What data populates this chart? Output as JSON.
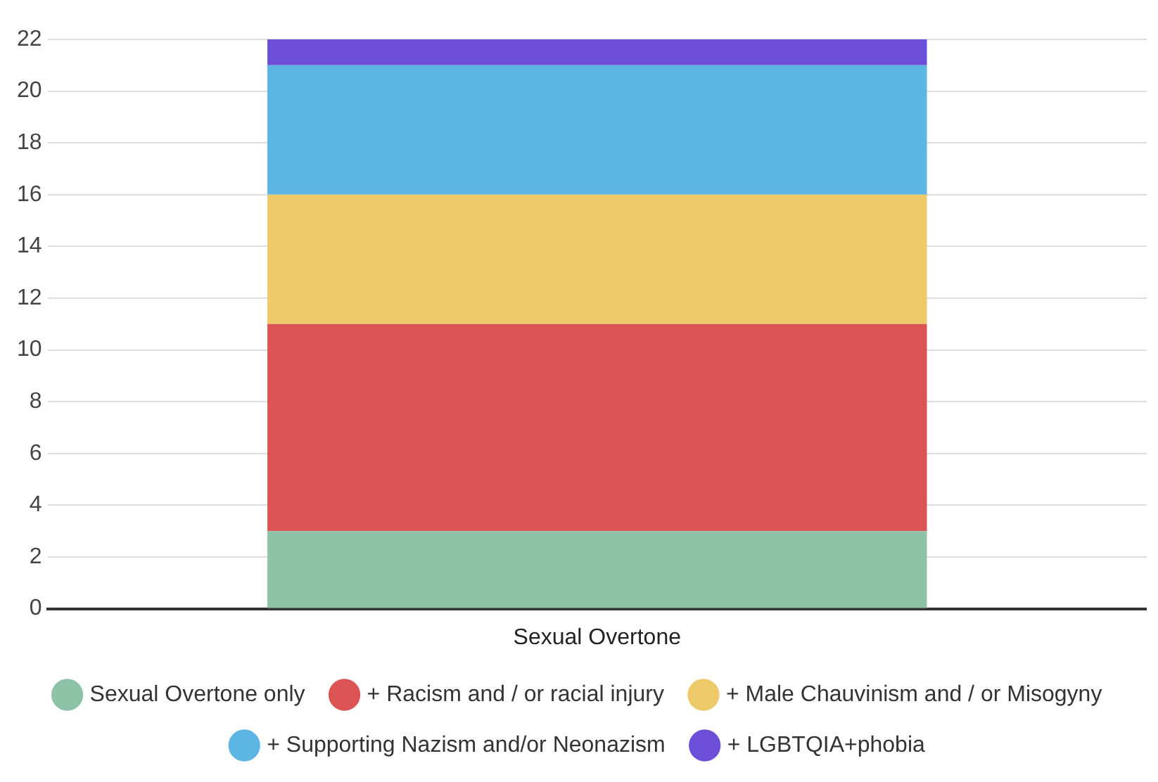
{
  "chart_data": {
    "type": "bar",
    "stacked": true,
    "categories": [
      "Sexual Overtone"
    ],
    "series": [
      {
        "name": "Sexual Overtone only",
        "color": "#8ec3a7",
        "values": [
          3
        ]
      },
      {
        "name": "+ Racism and / or racial injury",
        "color": "#db5353",
        "values": [
          8
        ]
      },
      {
        "name": "+ Male Chauvinism and / or Misogyny",
        "color": "#edc969",
        "values": [
          5
        ]
      },
      {
        "name": "+ Supporting Nazism and/or Neonazism",
        "color": "#5db5e3",
        "values": [
          5
        ]
      },
      {
        "name": "+ LGBTQIA+phobia",
        "color": "#6c4fd8",
        "values": [
          1
        ]
      }
    ],
    "ylim": [
      0,
      22
    ],
    "yticks": [
      0,
      2,
      4,
      6,
      8,
      10,
      12,
      14,
      16,
      18,
      20,
      22
    ],
    "grid": "y",
    "legend": "bottom"
  }
}
